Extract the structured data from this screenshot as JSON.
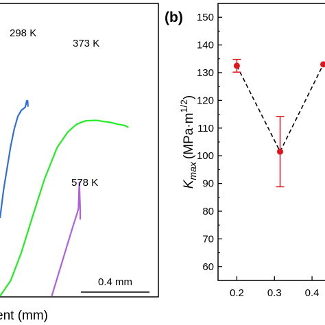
{
  "chart_data": [
    {
      "type": "line",
      "panel": "a",
      "xlabel": "ent (mm)",
      "scalebar_label": "0.4 mm",
      "series": [
        {
          "name": "298 K",
          "color": "#2f6fd6",
          "points": [
            [
              0.0,
              0.1
            ],
            [
              0.02,
              0.28
            ],
            [
              0.04,
              0.42
            ],
            [
              0.06,
              0.56
            ],
            [
              0.08,
              0.67
            ],
            [
              0.1,
              0.75
            ],
            [
              0.12,
              0.79
            ],
            [
              0.135,
              0.803
            ],
            [
              0.142,
              0.81
            ],
            [
              0.15,
              0.85
            ],
            [
              0.155,
              0.85
            ],
            [
              0.157,
              0.812
            ]
          ]
        },
        {
          "name": "373 K",
          "color": "#22ee22",
          "points": [
            [
              0.0,
              -0.4
            ],
            [
              0.06,
              -0.3
            ],
            [
              0.12,
              -0.12
            ],
            [
              0.18,
              0.1
            ],
            [
              0.25,
              0.35
            ],
            [
              0.32,
              0.55
            ],
            [
              0.38,
              0.65
            ],
            [
              0.43,
              0.7
            ],
            [
              0.48,
              0.722
            ],
            [
              0.54,
              0.725
            ],
            [
              0.58,
              0.718
            ],
            [
              0.62,
              0.712
            ],
            [
              0.66,
              0.7
            ],
            [
              0.7,
              0.692
            ],
            [
              0.72,
              0.68
            ]
          ]
        },
        {
          "name": "578 K",
          "color": "#b060dd",
          "points": [
            [
              0.29,
              -0.4
            ],
            [
              0.33,
              -0.25
            ],
            [
              0.37,
              -0.1
            ],
            [
              0.41,
              0.05
            ],
            [
              0.43,
              0.12
            ],
            [
              0.44,
              0.16
            ],
            [
              0.445,
              0.33
            ],
            [
              0.45,
              0.15
            ],
            [
              0.45,
              0.09
            ]
          ]
        }
      ]
    },
    {
      "type": "scatter",
      "panel": "b",
      "panel_label": "(b)",
      "ylabel_main": "K",
      "ylabel_sub": "max",
      "ylabel_units": "(MPa·m",
      "ylabel_exp": "1/2",
      "ylabel_close": ")",
      "ylim": [
        55,
        155
      ],
      "yticks": [
        "60",
        "70",
        "80",
        "90",
        "100",
        "110",
        "120",
        "130",
        "140",
        "150"
      ],
      "xlim": [
        0.15,
        0.46
      ],
      "xticks": [
        "0.2",
        "0.3",
        "0.4"
      ],
      "points": [
        {
          "x": 0.2,
          "y": 132.5,
          "err": 2.3
        },
        {
          "x": 0.315,
          "y": 101.5,
          "err": 12.7
        },
        {
          "x": 0.43,
          "y": 133
        }
      ],
      "colors": {
        "marker": "#e0141e",
        "trend": "#000000"
      }
    }
  ]
}
